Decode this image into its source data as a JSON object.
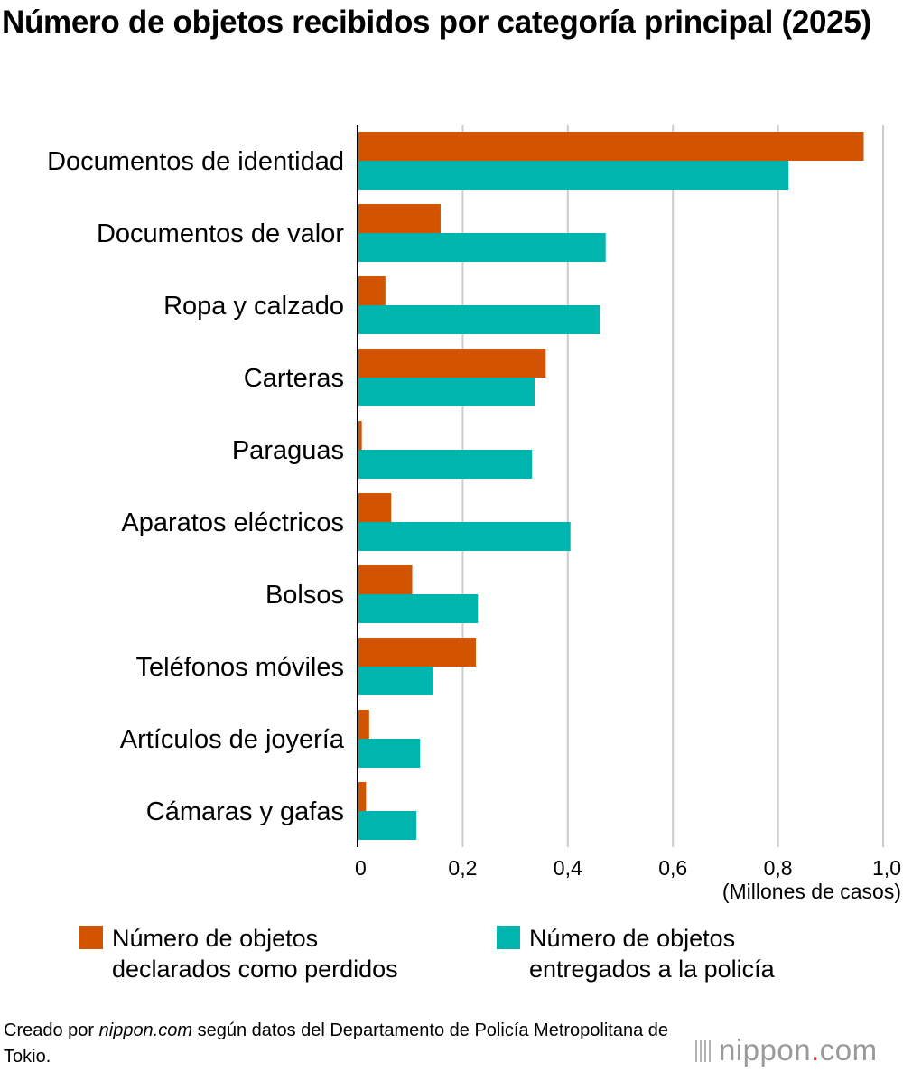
{
  "title": "Número de objetos recibidos por categoría principal (2025)",
  "chart_data": {
    "type": "bar",
    "orientation": "horizontal",
    "categories": [
      "Documentos de identidad",
      "Documentos de valor",
      "Ropa y calzado",
      "Carteras",
      "Paraguas",
      "Aparatos eléctricos",
      "Bolsos",
      "Teléfonos móviles",
      "Artículos de joyería",
      "Cámaras y gafas"
    ],
    "series": [
      {
        "name": "Número de objetos declarados como perdidos",
        "color": "#d35400",
        "values": [
          0.963,
          0.158,
          0.053,
          0.358,
          0.008,
          0.064,
          0.104,
          0.225,
          0.022,
          0.016
        ]
      },
      {
        "name": "Número de objetos entregados a la policía",
        "color": "#00b5ad",
        "values": [
          0.82,
          0.472,
          0.461,
          0.337,
          0.332,
          0.405,
          0.229,
          0.144,
          0.119,
          0.112
        ]
      }
    ],
    "xlim": [
      0,
      1.0
    ],
    "xticks": [
      0,
      0.2,
      0.4,
      0.6,
      0.8,
      1.0
    ],
    "xtick_labels": [
      "0",
      "0,2",
      "0,4",
      "0,6",
      "0,8",
      "1,0"
    ],
    "xlabel": "(Millones de casos)",
    "grid": "vertical",
    "legend_position": "bottom"
  },
  "legend": {
    "lost": {
      "line1": "Número de objetos",
      "line2": "declarados como perdidos",
      "color": "#d35400"
    },
    "police": {
      "line1": "Número de objetos",
      "line2": "entregados a la policía",
      "color": "#00b5ad"
    }
  },
  "source": {
    "prefix": "Creado por ",
    "site": "nippon.com",
    "suffix": " según datos del Departamento de Policía Metropolitana de Tokio."
  },
  "logo": {
    "name": "nippon",
    "dot": ".",
    "tld": "com"
  }
}
